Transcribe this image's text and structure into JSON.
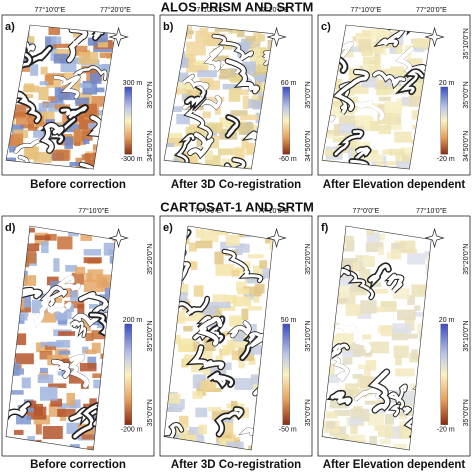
{
  "sections": [
    {
      "title": "ALOS PRISM AND SRTM",
      "panels": [
        {
          "letter": "a)",
          "top_labels": [
            "77°10'0\"E",
            "77°20'0\"E"
          ],
          "side_labels": [
            "35°0'0\"N",
            "34°50'0\"N"
          ],
          "colorbar": {
            "max": "300 m",
            "min": "-300 m"
          },
          "caption": "Before correction"
        },
        {
          "letter": "b)",
          "top_labels": [
            "77°10'0\"E",
            "77°20'0\"E"
          ],
          "side_labels": [
            "35°0'0\"N",
            "34°50'0\"N"
          ],
          "colorbar": {
            "max": "60 m",
            "min": "-60 m"
          },
          "caption": "After 3D Co-registration"
        },
        {
          "letter": "c)",
          "top_labels": [
            "77°10'0\"E",
            "77°20'0\"E"
          ],
          "side_labels": [
            "35°10'0\"N",
            "35°0'0\"N",
            "34°50'0\"N"
          ],
          "colorbar": {
            "max": "20 m",
            "min": "-20 m"
          },
          "caption": "After Elevation dependent"
        }
      ]
    },
    {
      "title": "CARTOSAT-1 AND SRTM",
      "panels": [
        {
          "letter": "d)",
          "top_labels": [
            "77°10'0\"E"
          ],
          "side_labels": [
            "35°20'0\"N",
            "35°10'0\"N",
            "35°0'0\"N"
          ],
          "colorbar": {
            "max": "200 m",
            "min": "-200 m"
          },
          "caption": "Before correction"
        },
        {
          "letter": "e)",
          "top_labels": [
            "77°0'0\"E",
            "77°10'0\"E"
          ],
          "side_labels": [
            "35°20'0\"N",
            "35°10'0\"N",
            "35°0'0\"N"
          ],
          "colorbar": {
            "max": "50 m",
            "min": "-50 m"
          },
          "caption": "After 3D Co-registration"
        },
        {
          "letter": "f)",
          "top_labels": [
            "77°0'0\"E",
            "77°10'0\"E"
          ],
          "side_labels": [
            "35°20'0\"N",
            "35°10'0\"N",
            "35°0'0\"N"
          ],
          "colorbar": {
            "max": "20 m",
            "min": "-20 m"
          },
          "caption": "After Elevation dependent"
        }
      ]
    }
  ]
}
